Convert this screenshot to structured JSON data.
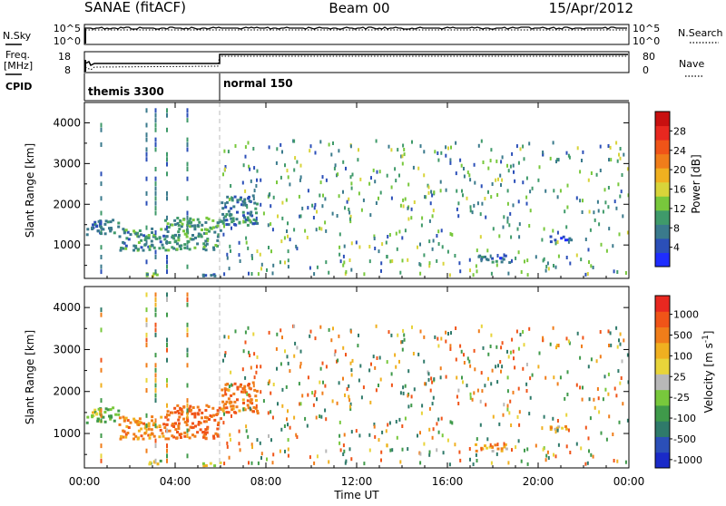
{
  "header": {
    "station": "SANAE (fitACF)",
    "beam": "Beam 00",
    "date": "15/Apr/2012"
  },
  "strip_panels": {
    "nsky_label": "N.Sky",
    "nsky_axis_top": "10^5",
    "nsky_axis_bottom": "10^0",
    "nsearch_label": "N.Search",
    "nsearch_axis_top": "10^5",
    "nsearch_axis_bottom": "10^0",
    "freq_label": "Freq.",
    "freq_unit": "[MHz]",
    "freq_axis_top": "18",
    "freq_axis_bottom": "8",
    "nave_label": "Nave",
    "nave_axis_top": "80",
    "nave_axis_bottom": "0",
    "cpid_label": "CPID",
    "cpid_segments": [
      {
        "name": "themis 3300",
        "start_hour": 0
      },
      {
        "name": "normal 150",
        "start_hour": 6
      }
    ]
  },
  "chart_data": [
    {
      "type": "heatmap",
      "panel": "power",
      "ylabel": "Slant Range [km]",
      "xlabel": "Time UT",
      "xlim_hours": [
        0,
        24
      ],
      "ylim": [
        180,
        4500
      ],
      "y_ticks": [
        "1000",
        "2000",
        "3000",
        "4000"
      ],
      "x_ticks": [
        "00:00",
        "04:00",
        "08:00",
        "12:00",
        "16:00",
        "20:00",
        "00:00"
      ],
      "colorbar": {
        "label": "Power [dB]",
        "ticks": [
          "4",
          "8",
          "12",
          "16",
          "20",
          "24",
          "28"
        ],
        "colors": [
          "#1f2dff",
          "#2b4fb8",
          "#3a7a8c",
          "#3f9a6a",
          "#78c83c",
          "#d8d43a",
          "#f0b020",
          "#f07d1a",
          "#f05418",
          "#e82820",
          "#c81010"
        ]
      },
      "regions": [
        {
          "t_start": 0.0,
          "t_end": 1.5,
          "r_min": 1250,
          "r_max": 1650,
          "value_db": 6
        },
        {
          "t_start": 1.5,
          "t_end": 3.5,
          "r_min": 900,
          "r_max": 1450,
          "value_db": 8
        },
        {
          "t_start": 3.5,
          "t_end": 6.0,
          "r_min": 900,
          "r_max": 1700,
          "value_db": 9
        },
        {
          "t_start": 6.0,
          "t_end": 7.6,
          "r_min": 1500,
          "r_max": 2250,
          "value_db": 7
        },
        {
          "t_start": 17.2,
          "t_end": 18.7,
          "r_min": 600,
          "r_max": 780,
          "value_db": 6
        },
        {
          "t_start": 20.5,
          "t_end": 21.5,
          "r_min": 1100,
          "r_max": 1250,
          "value_db": 5
        },
        {
          "t_start": 2.7,
          "t_end": 3.6,
          "r_min": 250,
          "r_max": 380,
          "value_db": 10
        },
        {
          "t_start": 5.0,
          "t_end": 6.0,
          "r_min": 250,
          "r_max": 340,
          "value_db": 5
        }
      ]
    },
    {
      "type": "heatmap",
      "panel": "velocity",
      "ylabel": "Slant Range [km]",
      "xlabel": "Time UT",
      "xlim_hours": [
        0,
        24
      ],
      "ylim": [
        180,
        4500
      ],
      "y_ticks": [
        "1000",
        "2000",
        "3000",
        "4000"
      ],
      "x_ticks": [
        "00:00",
        "04:00",
        "08:00",
        "12:00",
        "16:00",
        "20:00",
        "00:00"
      ],
      "colorbar": {
        "label": "Velocity [m s^-1]",
        "ticks": [
          "1000",
          "500",
          "100",
          "25",
          "-25",
          "-100",
          "-500",
          "-1000"
        ],
        "colors": [
          "#1a2ac8",
          "#2b4fb8",
          "#2f7a6a",
          "#3f9a4a",
          "#78c83c",
          "#b8b8b8",
          "#e8d43a",
          "#f0b020",
          "#f07d1a",
          "#f05418",
          "#e82820"
        ]
      },
      "regions": [
        {
          "t_start": 0.0,
          "t_end": 1.5,
          "r_min": 1250,
          "r_max": 1650,
          "value_ms": 80
        },
        {
          "t_start": 1.5,
          "t_end": 3.5,
          "r_min": 900,
          "r_max": 1450,
          "value_ms": -150
        },
        {
          "t_start": 3.5,
          "t_end": 6.0,
          "r_min": 900,
          "r_max": 1700,
          "value_ms": -250
        },
        {
          "t_start": 6.0,
          "t_end": 7.6,
          "r_min": 1500,
          "r_max": 2250,
          "value_ms": -200
        },
        {
          "t_start": 17.2,
          "t_end": 18.7,
          "r_min": 600,
          "r_max": 780,
          "value_ms": -60
        },
        {
          "t_start": 20.5,
          "t_end": 21.5,
          "r_min": 1100,
          "r_max": 1250,
          "value_ms": -80
        },
        {
          "t_start": 2.7,
          "t_end": 3.6,
          "r_min": 250,
          "r_max": 380,
          "value_ms": 30
        },
        {
          "t_start": 5.0,
          "t_end": 6.0,
          "r_min": 250,
          "r_max": 340,
          "value_ms": -40
        }
      ]
    }
  ]
}
